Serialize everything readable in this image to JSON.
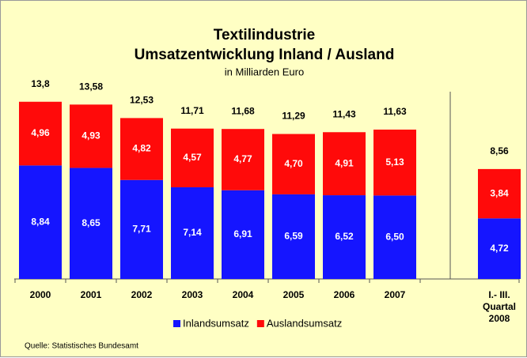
{
  "chart_data": {
    "type": "stacked-bar",
    "title": "Textilindustrie",
    "subtitle": "Umsatzentwicklung Inland / Ausland",
    "unit_note": "in Milliarden Euro",
    "source": "Quelle: Statistisches Bundesamt",
    "categories": [
      "2000",
      "2001",
      "2002",
      "2003",
      "2004",
      "2005",
      "2006",
      "2007",
      "I.- III. Quartal 2008"
    ],
    "series": [
      {
        "name": "Inlandsumsatz",
        "color": "#1515ff",
        "values": [
          8.84,
          8.65,
          7.71,
          7.14,
          6.91,
          6.59,
          6.52,
          6.5,
          4.72
        ],
        "value_labels": [
          "8,84",
          "8,65",
          "7,71",
          "7,14",
          "6,91",
          "6,59",
          "6,52",
          "6,50",
          "4,72"
        ]
      },
      {
        "name": "Auslandsumsatz",
        "color": "#ff0a0a",
        "values": [
          4.96,
          4.93,
          4.82,
          4.57,
          4.77,
          4.7,
          4.91,
          5.13,
          3.84
        ],
        "value_labels": [
          "4,96",
          "4,93",
          "4,82",
          "4,57",
          "4,77",
          "4,70",
          "4,91",
          "5,13",
          "3,84"
        ]
      }
    ],
    "totals": {
      "values": [
        13.8,
        13.58,
        12.53,
        11.71,
        11.68,
        11.29,
        11.43,
        11.63,
        8.56
      ],
      "value_labels": [
        "13,8",
        "13,58",
        "12,53",
        "11,71",
        "11,68",
        "11,29",
        "11,43",
        "11,63",
        "8,56"
      ]
    },
    "ylim": [
      0,
      16
    ],
    "legend": "bottom"
  }
}
